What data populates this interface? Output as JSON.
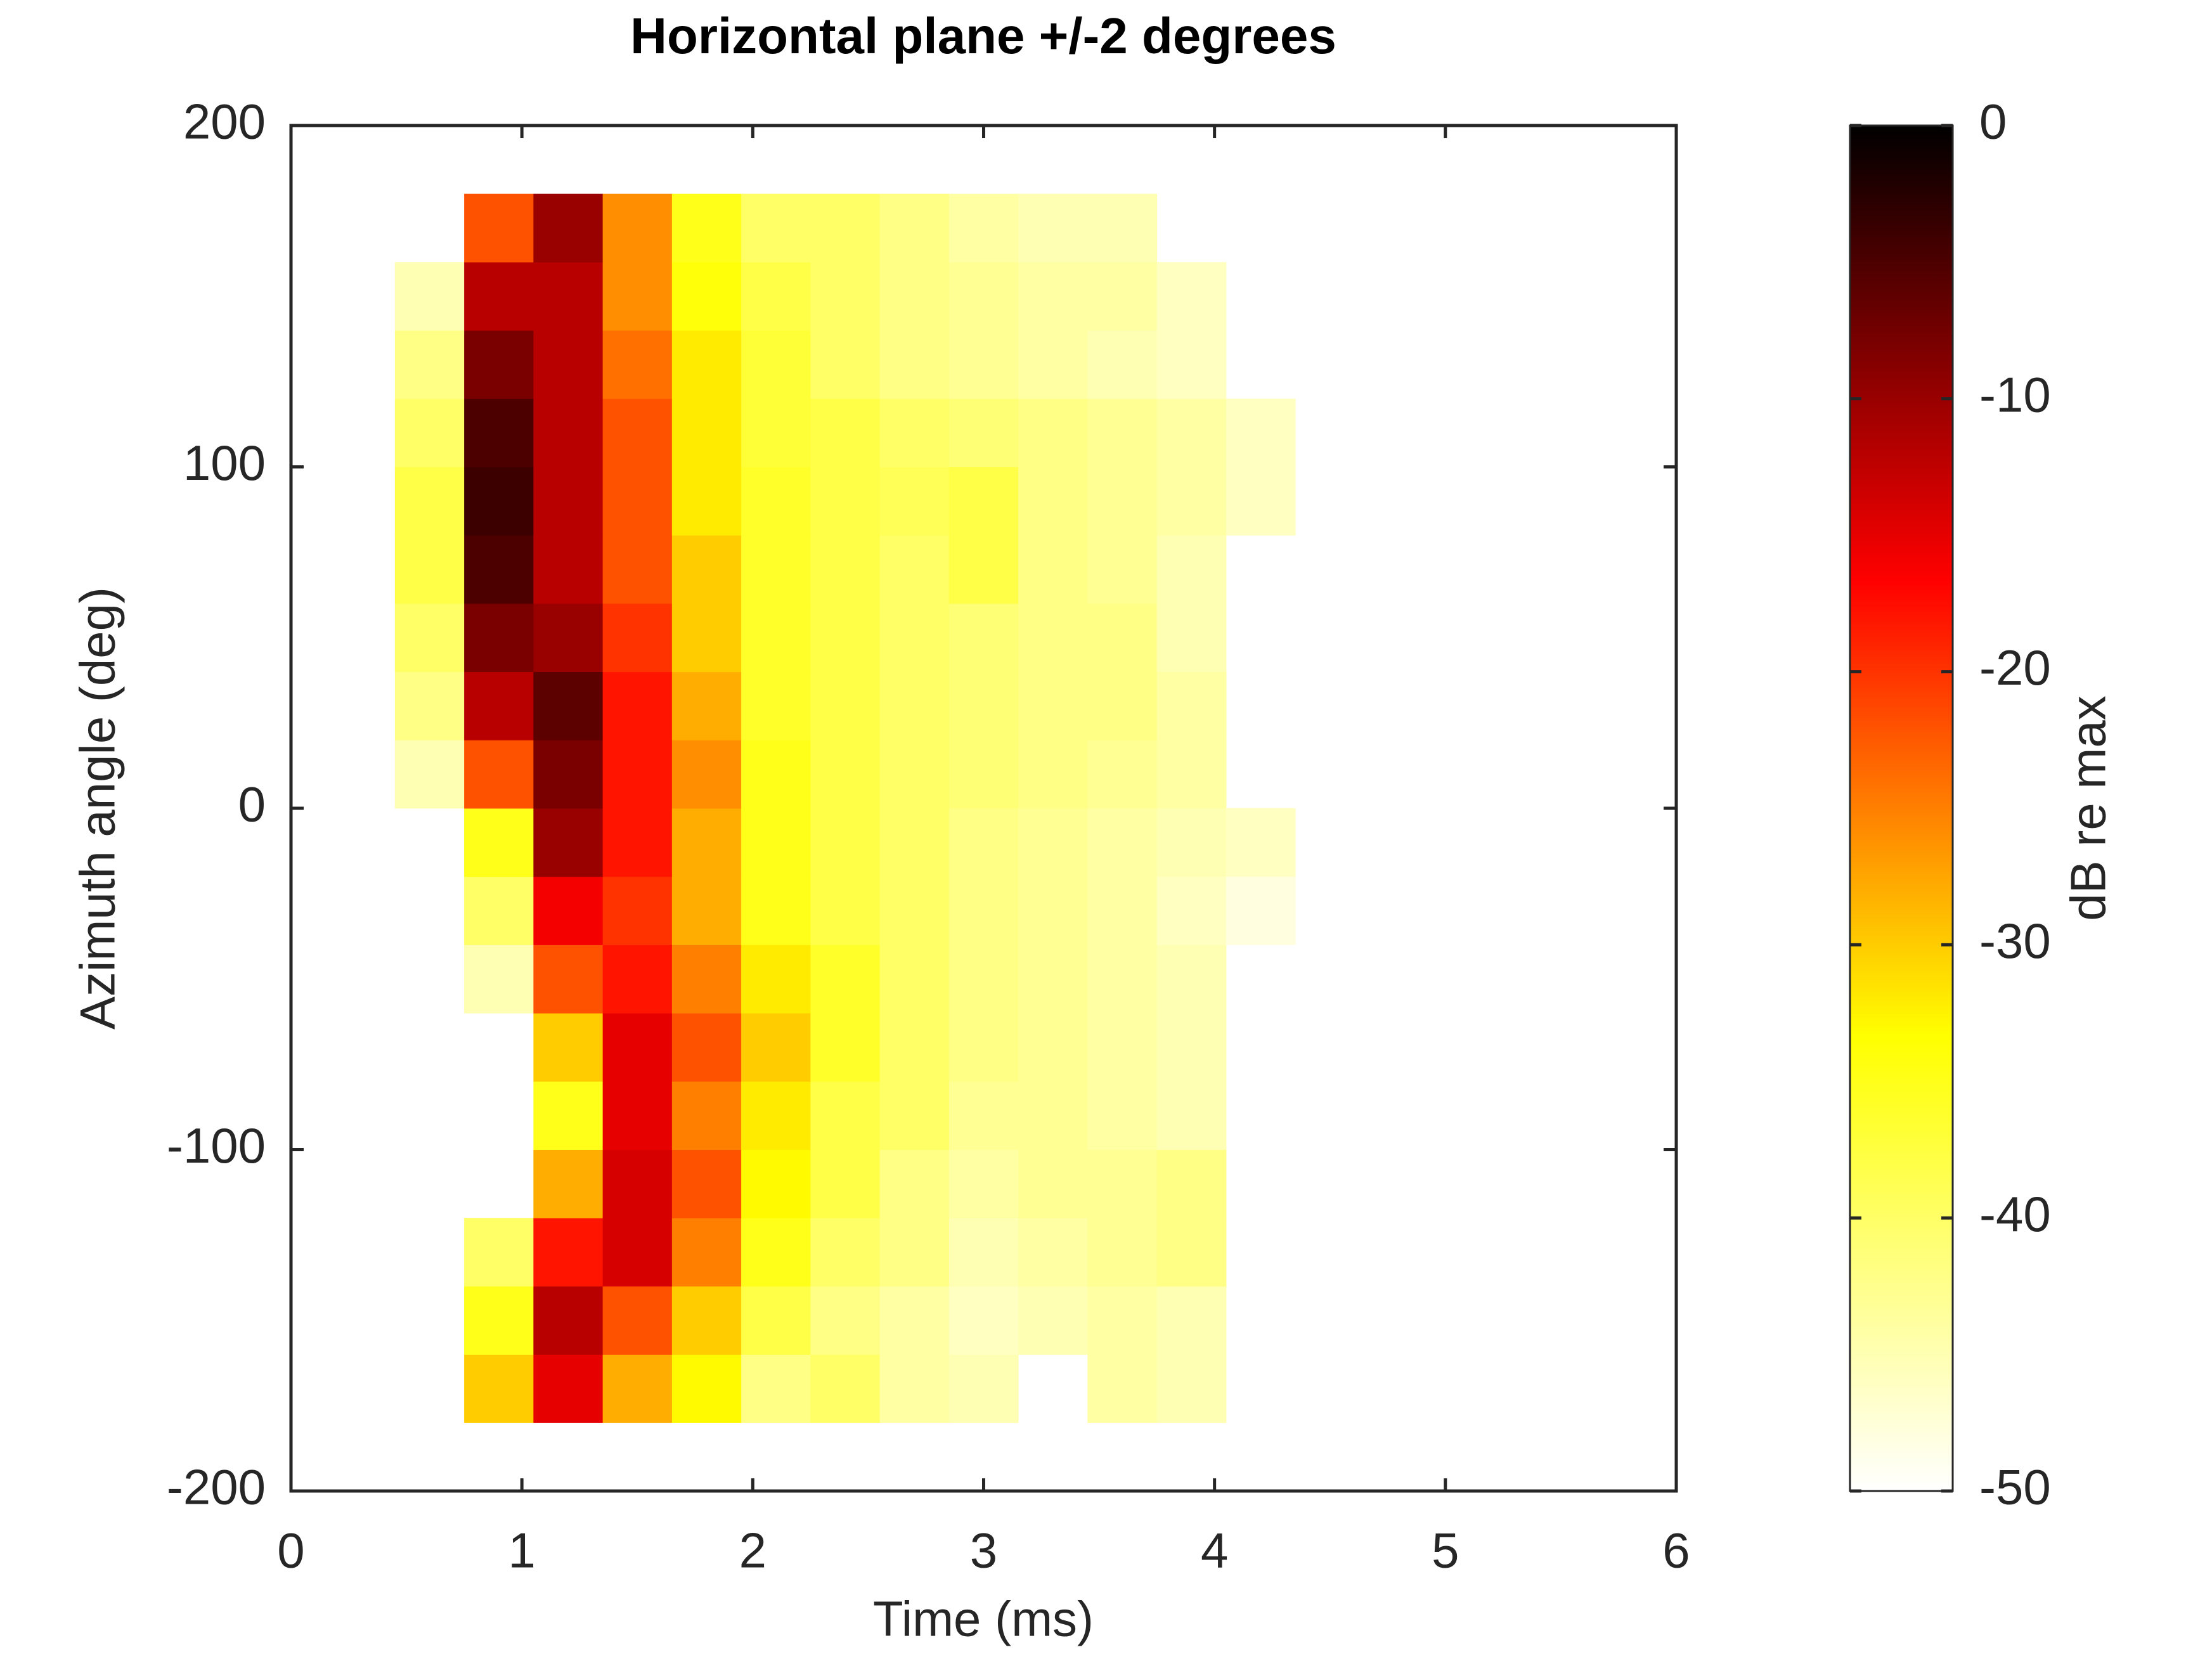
{
  "chart_data": {
    "type": "heatmap",
    "title": "Horizontal plane +/-2 degrees",
    "x_label": "Time (ms)",
    "y_label": "Azimuth angle (deg)",
    "x": [
      0.6,
      0.9,
      1.2,
      1.5,
      1.8,
      2.1,
      2.4,
      2.7,
      3.0,
      3.3,
      3.6,
      3.9,
      4.2
    ],
    "y": [
      -170,
      -150,
      -130,
      -110,
      -90,
      -70,
      -50,
      -30,
      -10,
      10,
      30,
      50,
      70,
      90,
      110,
      130,
      150,
      170
    ],
    "z": [
      [
        null,
        -30,
        -15,
        -28,
        -33,
        -42,
        -40,
        -44,
        -45,
        null,
        -44,
        -45,
        null
      ],
      [
        null,
        -35,
        -12,
        -22,
        -30,
        -38,
        -42,
        -44,
        -46,
        -45,
        -44,
        -45,
        null
      ],
      [
        null,
        -40,
        -18,
        -14,
        -25,
        -35,
        -40,
        -42,
        -45,
        -44,
        -43,
        -42,
        null
      ],
      [
        null,
        null,
        -28,
        -14,
        -22,
        -33,
        -38,
        -42,
        -44,
        -43,
        -43,
        -42,
        null
      ],
      [
        null,
        null,
        -35,
        -15,
        -25,
        -32,
        -38,
        -40,
        -43,
        -43,
        -44,
        -45,
        null
      ],
      [
        null,
        null,
        -30,
        -15,
        -22,
        -30,
        -36,
        -40,
        -42,
        -43,
        -44,
        -45,
        null
      ],
      [
        null,
        -45,
        -22,
        -18,
        -25,
        -32,
        -36,
        -40,
        -42,
        -43,
        -44,
        -45,
        null
      ],
      [
        null,
        -40,
        -16,
        -20,
        -28,
        -35,
        -38,
        -40,
        -42,
        -43,
        -44,
        -46,
        -48
      ],
      [
        null,
        -35,
        -10,
        -18,
        -28,
        -35,
        -38,
        -40,
        -42,
        -43,
        -44,
        -45,
        -46
      ],
      [
        -45,
        -22,
        -8,
        -18,
        -26,
        -35,
        -38,
        -40,
        -41,
        -42,
        -43,
        -44,
        null
      ],
      [
        -42,
        -12,
        -6,
        -18,
        -28,
        -36,
        -38,
        -40,
        -41,
        -42,
        -42,
        -44,
        null
      ],
      [
        -40,
        -8,
        -10,
        -20,
        -30,
        -36,
        -38,
        -40,
        -41,
        -42,
        -42,
        -45,
        null
      ],
      [
        -38,
        -5,
        -12,
        -22,
        -30,
        -36,
        -38,
        -40,
        -38,
        -42,
        -43,
        -45,
        null
      ],
      [
        -38,
        -4,
        -12,
        -22,
        -32,
        -36,
        -38,
        -39,
        -38,
        -42,
        -43,
        -44,
        -46
      ],
      [
        -40,
        -5,
        -12,
        -22,
        -32,
        -37,
        -38,
        -40,
        -41,
        -42,
        -43,
        -44,
        -46
      ],
      [
        -42,
        -8,
        -12,
        -24,
        -32,
        -37,
        -40,
        -42,
        -43,
        -44,
        -45,
        -46,
        null
      ],
      [
        -45,
        -12,
        -12,
        -26,
        -34,
        -38,
        -40,
        -42,
        -43,
        -44,
        -44,
        -46,
        null
      ],
      [
        null,
        -22,
        -10,
        -26,
        -35,
        -40,
        -40,
        -42,
        -44,
        -45,
        -45,
        null,
        null
      ]
    ],
    "xlim": [
      0,
      6
    ],
    "ylim": [
      -200,
      200
    ],
    "xticks": [
      0,
      1,
      2,
      3,
      4,
      5,
      6
    ],
    "yticks": [
      -200,
      -100,
      0,
      100,
      200
    ],
    "colorbar": {
      "label": "dB re max",
      "lim": [
        -50,
        0
      ],
      "ticks": [
        -50,
        -40,
        -30,
        -20,
        -10,
        0
      ],
      "colormap": [
        "#ffffff",
        "#ffff00",
        "#ff0000",
        "#000000"
      ]
    }
  }
}
